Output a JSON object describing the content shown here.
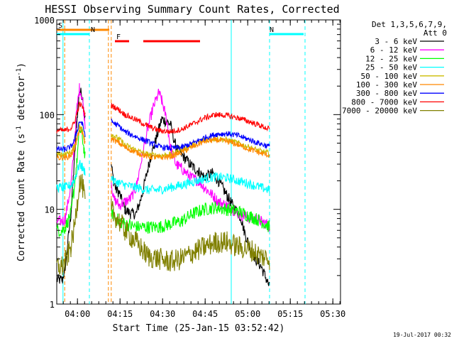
{
  "chart_data": {
    "type": "line",
    "title": "HESSI Observing Summary Count Rates, Corrected",
    "xlabel": "Start Time (25-Jan-15 03:52:42)",
    "ylabel": "Corrected Count Rate (s⁻¹ detector⁻¹)",
    "ylabel_main": "Corrected Count Rate (s",
    "ylabel_mid": " detector",
    "ylabel_end": ")",
    "ylabel_sup": "-1",
    "y_scale": "log",
    "ylim": [
      1,
      1000
    ],
    "xlim_minutes": [
      0,
      100
    ],
    "x_ticks": [
      {
        "label": "04:00",
        "t": 7.3
      },
      {
        "label": "04:15",
        "t": 22.3
      },
      {
        "label": "04:30",
        "t": 37.3
      },
      {
        "label": "04:45",
        "t": 52.3
      },
      {
        "label": "05:00",
        "t": 67.3
      },
      {
        "label": "05:15",
        "t": 82.3
      },
      {
        "label": "05:30",
        "t": 97.3
      }
    ],
    "y_ticks": [
      {
        "label": "1",
        "v": 1
      },
      {
        "label": "10",
        "v": 10
      },
      {
        "label": "100",
        "v": 100
      },
      {
        "label": "1000",
        "v": 1000
      }
    ],
    "legend_header": [
      "Det 1,3,5,6,7,9,",
      "Att 0"
    ],
    "footer_date": "19-Jul-2017 00:32",
    "series": [
      {
        "name": "3 - 6 keV",
        "color": "#000000",
        "noise": 0.06,
        "x": [
          0,
          2,
          3,
          5,
          6,
          7,
          8,
          9,
          9.5,
          10,
          11.5,
          12,
          14,
          16,
          18,
          18.5,
          19,
          19.2,
          20,
          21,
          22,
          24,
          26,
          28,
          30,
          33,
          35,
          37,
          40,
          42,
          44,
          47,
          48,
          50,
          52,
          55,
          57,
          60,
          62,
          64,
          65,
          66,
          68,
          70,
          72,
          74,
          75
        ],
        "y": [
          1.8,
          1.8,
          2.5,
          9,
          25,
          80,
          180,
          160,
          120,
          90,
          null,
          null,
          null,
          null,
          null,
          null,
          null,
          30,
          20,
          16,
          15,
          10,
          9,
          9,
          14,
          35,
          55,
          90,
          80,
          45,
          38,
          30,
          28,
          25,
          22,
          24,
          20,
          14,
          11,
          9,
          8,
          6,
          4,
          3,
          2.5,
          1.8,
          1.5
        ]
      },
      {
        "name": "6 - 12 keV",
        "color": "#ff00ff",
        "noise": 0.06,
        "x": [
          0,
          2,
          3,
          5,
          6,
          7,
          8,
          9,
          9.5,
          10,
          11.5,
          12,
          14,
          16,
          18,
          18.5,
          19,
          19.2,
          20,
          21,
          22,
          24,
          26,
          28,
          30,
          32,
          34,
          36,
          37,
          38,
          39,
          40,
          42,
          44,
          47,
          50,
          52,
          55,
          57,
          60,
          62,
          64,
          66,
          68,
          70,
          72,
          74,
          75
        ],
        "y": [
          7.5,
          7.5,
          8,
          18,
          40,
          110,
          190,
          150,
          110,
          80,
          null,
          null,
          null,
          null,
          null,
          null,
          null,
          20,
          13,
          12,
          11,
          12,
          13,
          17,
          35,
          70,
          120,
          170,
          140,
          110,
          80,
          45,
          30,
          27,
          22,
          20,
          17,
          14,
          12,
          11,
          10,
          9,
          8.5,
          8,
          8,
          7.5,
          7,
          6.5
        ]
      },
      {
        "name": "12 - 25 keV",
        "color": "#00ff00",
        "noise": 0.07,
        "x": [
          0,
          2,
          3,
          5,
          6,
          7,
          8,
          9,
          9.5,
          10,
          11.5,
          12,
          14,
          16,
          18,
          18.5,
          19,
          19.2,
          20,
          22,
          24,
          28,
          32,
          36,
          40,
          44,
          48,
          52,
          56,
          60,
          64,
          68,
          72,
          75
        ],
        "y": [
          6,
          6,
          6.5,
          9,
          15,
          30,
          70,
          60,
          45,
          35,
          null,
          null,
          null,
          null,
          null,
          null,
          null,
          9.5,
          8.5,
          7.5,
          7,
          6.5,
          6.5,
          6.5,
          7,
          7.5,
          9,
          10,
          10.5,
          10,
          9.5,
          8.5,
          7.5,
          6.5
        ]
      },
      {
        "name": "25 - 50 keV",
        "color": "#00ffff",
        "noise": 0.05,
        "x": [
          0,
          2,
          3,
          5,
          6,
          7,
          8,
          9,
          9.5,
          10,
          11.5,
          12,
          14,
          16,
          18,
          18.5,
          19,
          19.2,
          20,
          22,
          24,
          28,
          32,
          36,
          40,
          44,
          48,
          52,
          56,
          60,
          64,
          68,
          72,
          75
        ],
        "y": [
          17,
          17,
          17,
          18,
          20,
          24,
          30,
          28,
          26,
          25,
          null,
          null,
          null,
          null,
          null,
          null,
          null,
          22,
          20,
          19,
          18,
          17,
          16,
          16,
          17,
          18,
          19.5,
          21,
          22,
          21.5,
          20,
          18.5,
          17,
          16
        ]
      },
      {
        "name": "50 - 100 keV",
        "color": "#ccbb00",
        "noise": 0.03,
        "x": [
          0,
          2,
          3,
          5,
          6,
          7,
          8,
          9,
          9.5,
          10,
          11.5,
          12,
          14,
          16,
          18,
          18.5,
          19,
          19.2,
          20,
          22,
          24,
          28,
          32,
          36,
          40,
          44,
          48,
          52,
          56,
          60,
          64,
          68,
          72,
          75
        ],
        "y": [
          38,
          38,
          38,
          40,
          45,
          55,
          75,
          70,
          60,
          55,
          null,
          null,
          null,
          null,
          null,
          null,
          null,
          62,
          60,
          55,
          48,
          42,
          38,
          37,
          38,
          42,
          48,
          54,
          56,
          54,
          50,
          45,
          41,
          39
        ]
      },
      {
        "name": "100 - 300 keV",
        "color": "#ff8800",
        "noise": 0.03,
        "x": [
          0,
          2,
          3,
          5,
          6,
          7,
          8,
          9,
          9.5,
          10,
          11.5,
          12,
          14,
          16,
          18,
          18.5,
          19,
          19.2,
          20,
          22,
          24,
          28,
          32,
          36,
          40,
          44,
          48,
          52,
          56,
          60,
          64,
          68,
          72,
          75
        ],
        "y": [
          35,
          35,
          35,
          37,
          42,
          52,
          70,
          65,
          56,
          50,
          null,
          null,
          null,
          null,
          null,
          null,
          null,
          56,
          54,
          50,
          45,
          40,
          36,
          35,
          36,
          40,
          46,
          52,
          54,
          52,
          48,
          43,
          39,
          37
        ]
      },
      {
        "name": "300 - 800 keV",
        "color": "#0000ff",
        "noise": 0.03,
        "x": [
          0,
          2,
          3,
          5,
          6,
          7,
          8,
          9,
          9.5,
          10,
          11.5,
          12,
          14,
          16,
          18,
          18.5,
          19,
          19.2,
          20,
          22,
          24,
          28,
          32,
          36,
          40,
          44,
          48,
          52,
          56,
          60,
          64,
          68,
          72,
          75
        ],
        "y": [
          43,
          43,
          43,
          46,
          52,
          65,
          85,
          80,
          70,
          62,
          null,
          null,
          null,
          null,
          null,
          null,
          null,
          85,
          82,
          75,
          66,
          58,
          52,
          46,
          44,
          45,
          50,
          57,
          62,
          63,
          60,
          54,
          49,
          46
        ]
      },
      {
        "name": "800 - 7000 keV",
        "color": "#ff0000",
        "noise": 0.03,
        "x": [
          0,
          2,
          3,
          5,
          6,
          7,
          8,
          9,
          9.5,
          10,
          11.5,
          12,
          14,
          16,
          18,
          18.5,
          19,
          19.2,
          20,
          22,
          24,
          28,
          32,
          36,
          40,
          44,
          48,
          52,
          56,
          60,
          64,
          68,
          72,
          75
        ],
        "y": [
          68,
          68,
          68,
          72,
          80,
          100,
          130,
          120,
          110,
          100,
          null,
          null,
          null,
          null,
          null,
          null,
          null,
          125,
          122,
          112,
          100,
          88,
          76,
          68,
          66,
          70,
          80,
          92,
          100,
          98,
          92,
          84,
          76,
          70
        ]
      },
      {
        "name": "7000 - 20000 keV",
        "color": "#808000",
        "noise": 0.12,
        "x": [
          0,
          2,
          3,
          5,
          6,
          7,
          8,
          9,
          9.5,
          10,
          11.5,
          12,
          14,
          16,
          18,
          18.5,
          19,
          19.2,
          20,
          22,
          24,
          28,
          32,
          36,
          40,
          44,
          48,
          52,
          56,
          60,
          64,
          68,
          72,
          75
        ],
        "y": [
          2.5,
          2.5,
          2.8,
          4,
          6,
          10,
          20,
          18,
          15,
          12,
          null,
          null,
          null,
          null,
          null,
          null,
          null,
          10,
          9,
          7.5,
          6,
          4.5,
          3.2,
          3,
          2.8,
          3,
          3.5,
          4,
          4.5,
          4.5,
          4,
          3.8,
          3.2,
          3
        ]
      }
    ],
    "annotations": {
      "flags": [
        {
          "label": "S",
          "color": "#ff8800",
          "t_start": 0,
          "t_end": 18.5,
          "row": 1
        },
        {
          "label": "N",
          "color": "#00ffff",
          "t_start": 0,
          "t_end": 11.5,
          "row": 2
        },
        {
          "label": "N",
          "color": "#00ffff",
          "t_start": 75,
          "t_end": 87,
          "row": 2
        },
        {
          "label": "F",
          "color": "#ff0000",
          "t_start": 20.5,
          "t_end": 25.5,
          "row": 3
        },
        {
          "label": "",
          "color": "#ff0000",
          "t_start": 30.5,
          "t_end": 50.5,
          "row": 3
        }
      ],
      "night_lines": [
        {
          "t": 11.5,
          "color": "#00ffff"
        },
        {
          "t": 75,
          "color": "#00ffff"
        },
        {
          "t": 87.5,
          "color": "#00ffff"
        }
      ],
      "day_lines": [
        {
          "t": 2.2,
          "color": "#00ffff"
        },
        {
          "t": 61.5,
          "color": "#00ffff"
        }
      ],
      "saa_lines": [
        {
          "t": 2.8,
          "color": "#ff8800"
        },
        {
          "t": 18.2,
          "color": "#ff8800"
        },
        {
          "t": 19.2,
          "color": "#ff8800"
        }
      ]
    }
  }
}
